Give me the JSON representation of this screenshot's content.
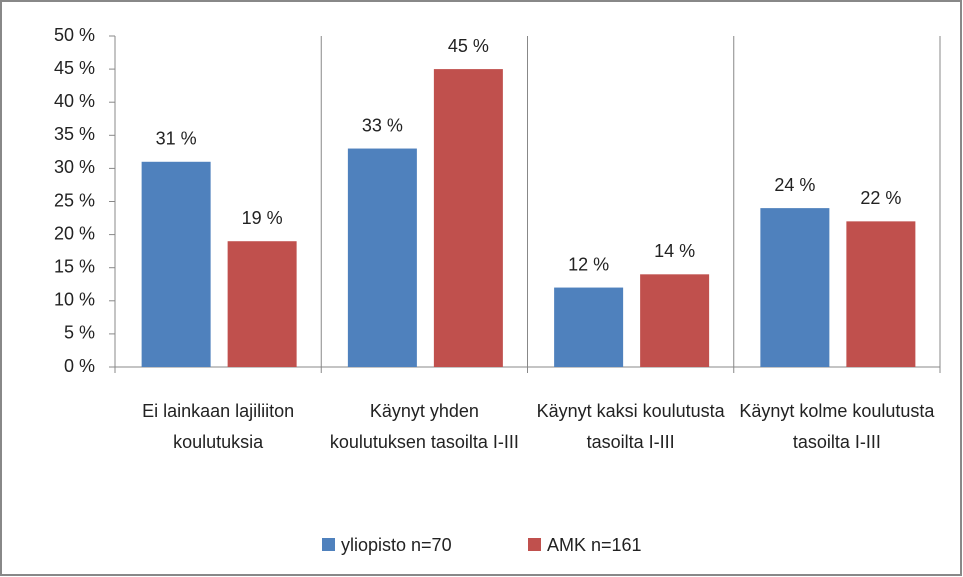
{
  "chart_data": {
    "type": "bar",
    "categories": [
      "Ei lainkaan lajiliiton koulutuksia",
      "Käynyt yhden koulutuksen tasoilta I-III",
      "Käynyt kaksi koulutusta tasoilta I-III",
      "Käynyt kolme koulutusta tasoilta I-III"
    ],
    "series": [
      {
        "name": "yliopisto n=70",
        "color": "#4f81bd",
        "values": [
          31,
          33,
          12,
          24
        ],
        "value_labels": [
          "31 %",
          "33 %",
          "12 %",
          "24 %"
        ]
      },
      {
        "name": "AMK n=161",
        "color": "#c0504d",
        "values": [
          19,
          45,
          14,
          22
        ],
        "value_labels": [
          "19 %",
          "45 %",
          "14 %",
          "22 %"
        ]
      }
    ],
    "ylim": [
      0,
      50
    ],
    "yticks": [
      {
        "value": 0,
        "label": "0 %"
      },
      {
        "value": 5,
        "label": "5 %"
      },
      {
        "value": 10,
        "label": "10 %"
      },
      {
        "value": 15,
        "label": "15 %"
      },
      {
        "value": 20,
        "label": "20 %"
      },
      {
        "value": 25,
        "label": "25 %"
      },
      {
        "value": 30,
        "label": "30 %"
      },
      {
        "value": 35,
        "label": "35 %"
      },
      {
        "value": 40,
        "label": "40 %"
      },
      {
        "value": 45,
        "label": "45 %"
      },
      {
        "value": 50,
        "label": "50 %"
      }
    ],
    "legend": "bottom"
  }
}
